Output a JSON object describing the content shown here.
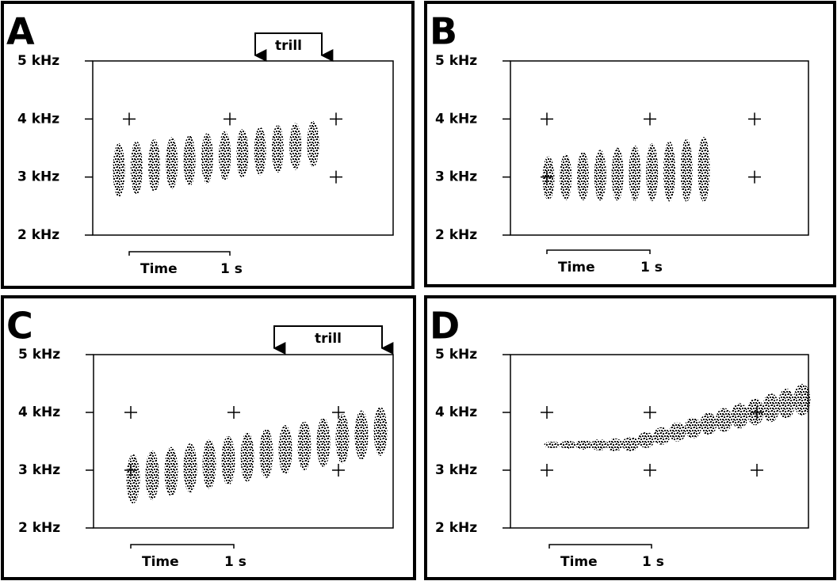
{
  "panels": [
    {
      "letter": "A",
      "yticks": [
        "5 kHz",
        "4 kHz",
        "3 kHz",
        "2 kHz"
      ],
      "time_label": "Time",
      "scale_label": "1 s",
      "trill": "trill"
    },
    {
      "letter": "B",
      "yticks": [
        "5 kHz",
        "4 kHz",
        "3 kHz",
        "2 kHz"
      ],
      "time_label": "Time",
      "scale_label": "1 s"
    },
    {
      "letter": "C",
      "yticks": [
        "5 kHz",
        "4 kHz",
        "3 kHz",
        "2 kHz"
      ],
      "time_label": "Time",
      "scale_label": "1 s",
      "trill": "trill"
    },
    {
      "letter": "D",
      "yticks": [
        "5 kHz",
        "4 kHz",
        "3 kHz",
        "2 kHz"
      ],
      "time_label": "Time",
      "scale_label": "1 s"
    }
  ]
}
